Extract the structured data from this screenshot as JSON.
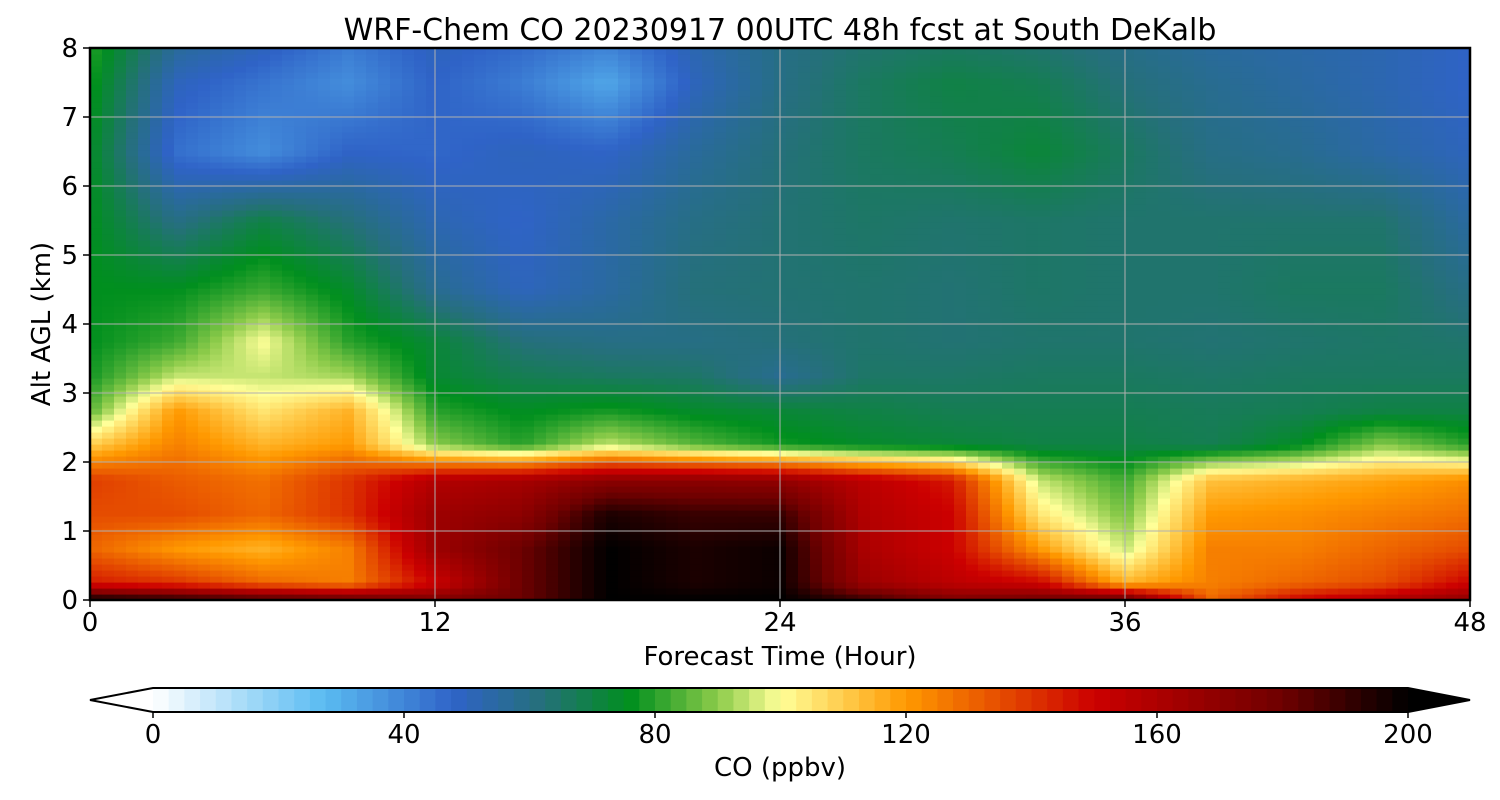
{
  "chart_data": {
    "type": "heatmap",
    "title": "WRF-Chem CO  20230917 00UTC 48h fcst at South DeKalb",
    "xlabel": "Forecast Time (Hour)",
    "ylabel": "Alt AGL (km)",
    "xlim": [
      0,
      48
    ],
    "ylim": [
      0,
      8
    ],
    "x_ticks": [
      0,
      12,
      24,
      36,
      48
    ],
    "y_ticks": [
      0,
      1,
      2,
      3,
      4,
      5,
      6,
      7,
      8
    ],
    "grid": true,
    "x": [
      0,
      3,
      6,
      9,
      12,
      15,
      18,
      21,
      24,
      27,
      30,
      33,
      36,
      39,
      42,
      45,
      48
    ],
    "y": [
      0,
      0.25,
      0.75,
      1.25,
      1.75,
      2.25,
      2.75,
      3.25,
      3.75,
      4.5,
      5.5,
      6.5,
      7.5,
      8
    ],
    "z": [
      [
        200,
        195,
        190,
        185,
        175,
        180,
        200,
        200,
        200,
        190,
        175,
        180,
        185,
        130,
        150,
        160,
        170
      ],
      [
        145,
        140,
        130,
        125,
        150,
        180,
        200,
        195,
        198,
        165,
        155,
        150,
        115,
        125,
        130,
        135,
        150
      ],
      [
        130,
        120,
        115,
        125,
        165,
        180,
        200,
        195,
        198,
        160,
        150,
        120,
        95,
        125,
        125,
        130,
        135
      ],
      [
        135,
        135,
        130,
        140,
        165,
        170,
        195,
        190,
        190,
        158,
        150,
        105,
        88,
        120,
        122,
        125,
        128
      ],
      [
        138,
        132,
        128,
        140,
        158,
        162,
        170,
        170,
        168,
        155,
        145,
        95,
        82,
        112,
        115,
        118,
        122
      ],
      [
        110,
        125,
        115,
        120,
        90,
        80,
        95,
        85,
        78,
        74,
        72,
        70,
        70,
        68,
        75,
        90,
        80
      ],
      [
        85,
        120,
        105,
        115,
        80,
        75,
        78,
        74,
        72,
        70,
        68,
        68,
        68,
        67,
        68,
        70,
        70
      ],
      [
        78,
        95,
        95,
        92,
        73,
        68,
        66,
        65,
        58,
        65,
        65,
        66,
        66,
        65,
        66,
        66,
        66
      ],
      [
        76,
        82,
        100,
        80,
        72,
        62,
        60,
        60,
        62,
        64,
        63,
        64,
        64,
        63,
        64,
        65,
        64
      ],
      [
        76,
        76,
        82,
        74,
        58,
        50,
        55,
        62,
        63,
        64,
        63,
        65,
        64,
        64,
        66,
        66,
        60
      ],
      [
        76,
        60,
        70,
        62,
        52,
        48,
        54,
        60,
        63,
        65,
        64,
        65,
        64,
        64,
        64,
        64,
        55
      ],
      [
        75,
        45,
        38,
        48,
        47,
        50,
        48,
        56,
        62,
        66,
        68,
        72,
        66,
        60,
        58,
        54,
        50
      ],
      [
        78,
        50,
        44,
        38,
        48,
        42,
        32,
        50,
        60,
        66,
        70,
        68,
        62,
        58,
        55,
        52,
        48
      ],
      [
        80,
        56,
        50,
        42,
        50,
        46,
        40,
        52,
        60,
        64,
        66,
        64,
        60,
        56,
        54,
        52,
        48
      ]
    ],
    "colorbar": {
      "label": "CO  (ppbv)",
      "min": 0,
      "max": 200,
      "ticks": [
        0,
        40,
        80,
        120,
        160,
        200
      ],
      "extend": "both",
      "colors": [
        {
          "v": 0,
          "c": "#ffffff"
        },
        {
          "v": 27,
          "c": "#5bbcf2"
        },
        {
          "v": 48,
          "c": "#2f63c7"
        },
        {
          "v": 62,
          "c": "#25707a"
        },
        {
          "v": 76,
          "c": "#008f1e"
        },
        {
          "v": 90,
          "c": "#8ccb4a"
        },
        {
          "v": 100,
          "c": "#ffff99"
        },
        {
          "v": 120,
          "c": "#ff9900"
        },
        {
          "v": 150,
          "c": "#cc0000"
        },
        {
          "v": 180,
          "c": "#6e0000"
        },
        {
          "v": 200,
          "c": "#000000"
        }
      ]
    }
  }
}
